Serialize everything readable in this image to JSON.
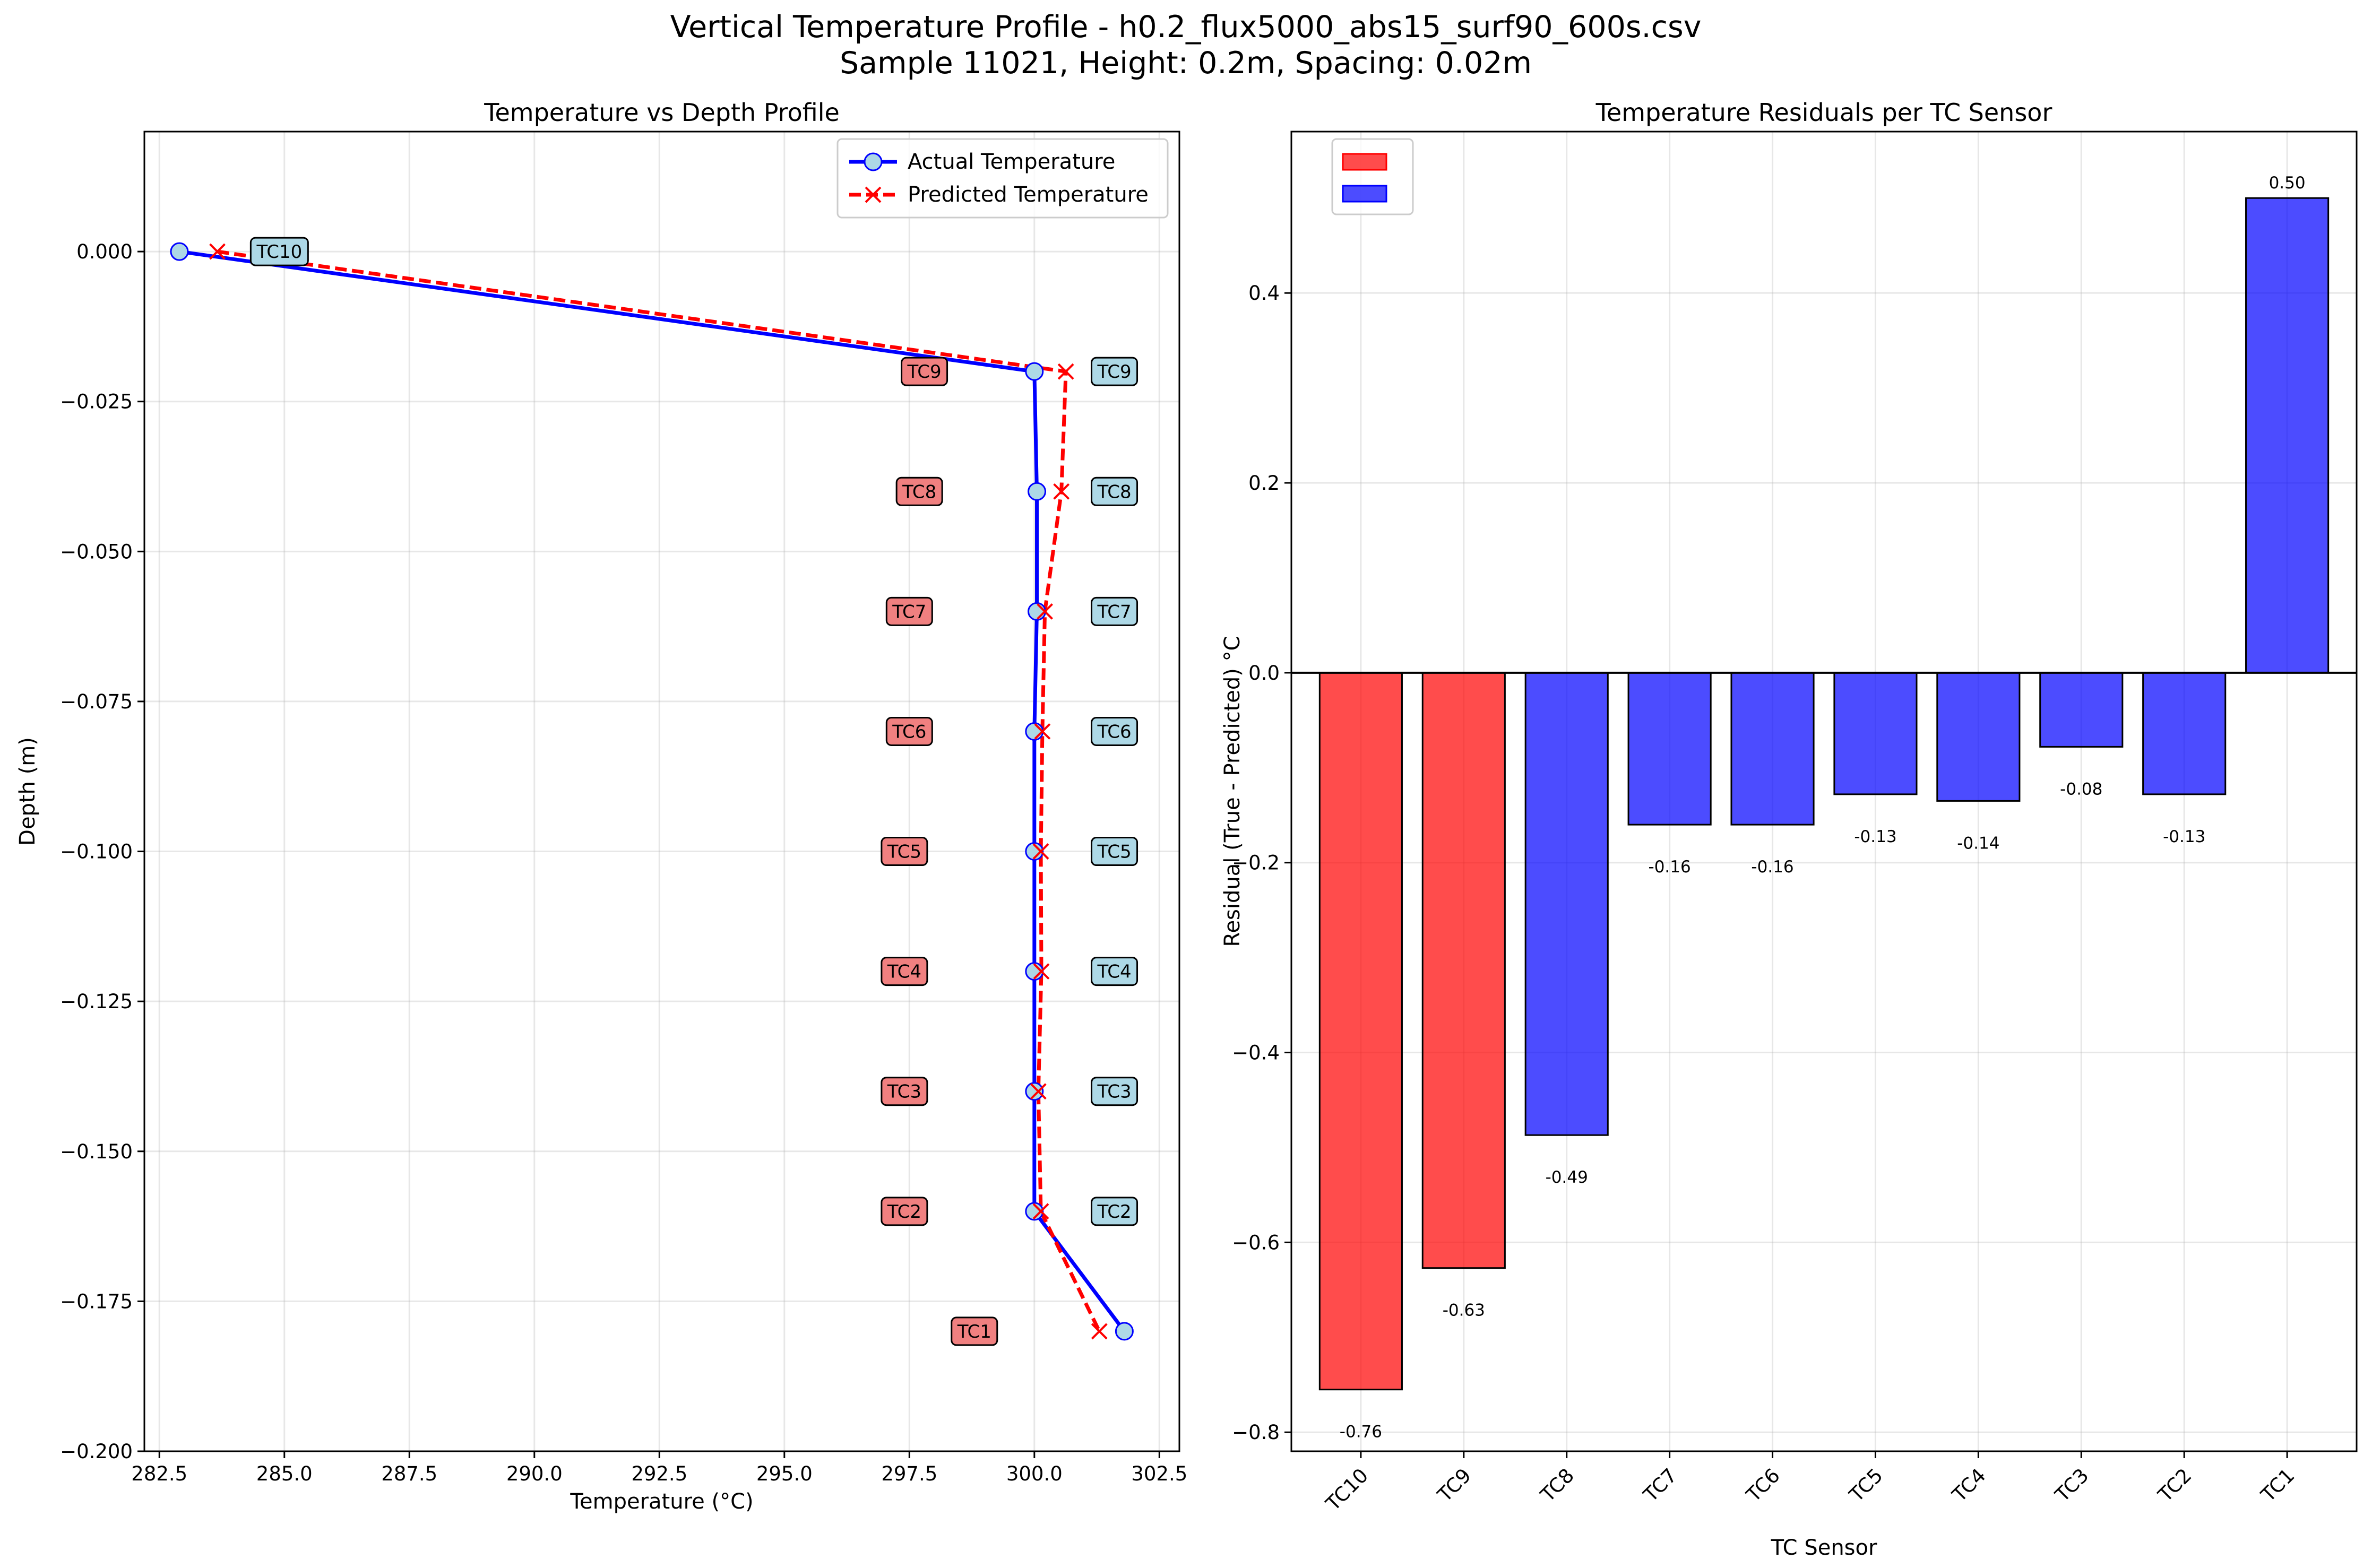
{
  "figure": {
    "title_line1": "Vertical Temperature Profile - h0.2_flux5000_abs15_surf90_600s.csv",
    "title_line2": "Sample 11021, Height: 0.2m, Spacing: 0.02m"
  },
  "chart_data": [
    {
      "type": "line",
      "title": "Temperature vs Depth Profile",
      "xlabel": "Temperature (°C)",
      "ylabel": "Depth (m)",
      "xlim": [
        282.2,
        302.9
      ],
      "ylim": [
        -0.2,
        0.02
      ],
      "xticks": [
        282.5,
        285.0,
        287.5,
        290.0,
        292.5,
        295.0,
        297.5,
        300.0,
        302.5
      ],
      "yticks": [
        0.0,
        -0.025,
        -0.05,
        -0.075,
        -0.1,
        -0.125,
        -0.15,
        -0.175,
        -0.2
      ],
      "grid": true,
      "legend_position": "upper right",
      "series": [
        {
          "name": "Actual Temperature",
          "color": "#0000ff",
          "marker_fill": "#add8e6",
          "points": [
            {
              "t": 282.9,
              "d": 0.0
            },
            {
              "t": 300.0,
              "d": -0.02
            },
            {
              "t": 300.05,
              "d": -0.04
            },
            {
              "t": 300.05,
              "d": -0.06
            },
            {
              "t": 300.0,
              "d": -0.08
            },
            {
              "t": 300.0,
              "d": -0.1
            },
            {
              "t": 300.0,
              "d": -0.12
            },
            {
              "t": 300.0,
              "d": -0.14
            },
            {
              "t": 300.0,
              "d": -0.16
            },
            {
              "t": 301.8,
              "d": -0.18
            }
          ]
        },
        {
          "name": "Predicted Temperature",
          "color": "#ff0000",
          "points": [
            {
              "t": 283.66,
              "d": 0.0
            },
            {
              "t": 300.63,
              "d": -0.02
            },
            {
              "t": 300.54,
              "d": -0.04
            },
            {
              "t": 300.21,
              "d": -0.06
            },
            {
              "t": 300.16,
              "d": -0.08
            },
            {
              "t": 300.13,
              "d": -0.1
            },
            {
              "t": 300.14,
              "d": -0.12
            },
            {
              "t": 300.08,
              "d": -0.14
            },
            {
              "t": 300.13,
              "d": -0.16
            },
            {
              "t": 301.3,
              "d": -0.18
            }
          ]
        }
      ],
      "sensor_labels": [
        {
          "text": "TC10",
          "t": 284.9,
          "d": 0.0,
          "color": "#add8e6"
        },
        {
          "text": "TC9",
          "t": 297.8,
          "d": -0.02,
          "color": "#f08080"
        },
        {
          "text": "TC9",
          "t": 301.6,
          "d": -0.02,
          "color": "#add8e6"
        },
        {
          "text": "TC8",
          "t": 297.7,
          "d": -0.04,
          "color": "#f08080"
        },
        {
          "text": "TC8",
          "t": 301.6,
          "d": -0.04,
          "color": "#add8e6"
        },
        {
          "text": "TC7",
          "t": 297.5,
          "d": -0.06,
          "color": "#f08080"
        },
        {
          "text": "TC7",
          "t": 301.6,
          "d": -0.06,
          "color": "#add8e6"
        },
        {
          "text": "TC6",
          "t": 297.5,
          "d": -0.08,
          "color": "#f08080"
        },
        {
          "text": "TC6",
          "t": 301.6,
          "d": -0.08,
          "color": "#add8e6"
        },
        {
          "text": "TC5",
          "t": 297.4,
          "d": -0.1,
          "color": "#f08080"
        },
        {
          "text": "TC5",
          "t": 301.6,
          "d": -0.1,
          "color": "#add8e6"
        },
        {
          "text": "TC4",
          "t": 297.4,
          "d": -0.12,
          "color": "#f08080"
        },
        {
          "text": "TC4",
          "t": 301.6,
          "d": -0.12,
          "color": "#add8e6"
        },
        {
          "text": "TC3",
          "t": 297.4,
          "d": -0.14,
          "color": "#f08080"
        },
        {
          "text": "TC3",
          "t": 301.6,
          "d": -0.14,
          "color": "#add8e6"
        },
        {
          "text": "TC2",
          "t": 297.4,
          "d": -0.16,
          "color": "#f08080"
        },
        {
          "text": "TC2",
          "t": 301.6,
          "d": -0.16,
          "color": "#add8e6"
        },
        {
          "text": "TC1",
          "t": 298.8,
          "d": -0.18,
          "color": "#f08080"
        }
      ]
    },
    {
      "type": "bar",
      "title": "Temperature Residuals per TC Sensor",
      "xlabel": "TC Sensor",
      "ylabel": "Residual (True - Predicted) °C",
      "ylim": [
        -0.82,
        0.57
      ],
      "yticks": [
        0.4,
        0.2,
        0.0,
        -0.2,
        -0.4,
        -0.6,
        -0.8
      ],
      "grid": true,
      "legend_position": "upper left",
      "legend_swatches": [
        "#ff0000",
        "#0000ff"
      ],
      "categories": [
        "TC10",
        "TC9",
        "TC8",
        "TC7",
        "TC6",
        "TC5",
        "TC4",
        "TC3",
        "TC2",
        "TC1"
      ],
      "values": [
        -0.755,
        -0.627,
        -0.487,
        -0.16,
        -0.16,
        -0.128,
        -0.135,
        -0.078,
        -0.128,
        0.5
      ],
      "value_labels": [
        "-0.76",
        "-0.63",
        "-0.49",
        "-0.16",
        "-0.16",
        "-0.13",
        "-0.14",
        "-0.08",
        "-0.13",
        "0.50"
      ],
      "colors": [
        "#ff0000",
        "#ff0000",
        "#0000ff",
        "#0000ff",
        "#0000ff",
        "#0000ff",
        "#0000ff",
        "#0000ff",
        "#0000ff",
        "#0000ff"
      ]
    }
  ]
}
